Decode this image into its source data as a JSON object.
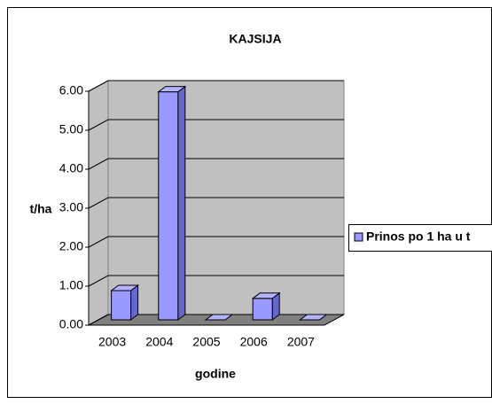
{
  "chart_data": {
    "type": "bar3d",
    "title": "KAJSIJA",
    "x_label": "godine",
    "y_label": "t/ha",
    "categories": [
      "2003",
      "2004",
      "2005",
      "2006",
      "2007"
    ],
    "series": [
      {
        "name": "Prinos po 1 ha u t",
        "color": "#9999ff",
        "values": [
          0.75,
          5.85,
          0,
          0.55,
          0
        ]
      }
    ],
    "ylim": [
      0,
      6
    ],
    "yticks": [
      {
        "value": 0,
        "label": "0.00"
      },
      {
        "value": 1,
        "label": "1.00"
      },
      {
        "value": 2,
        "label": "2.00"
      },
      {
        "value": 3,
        "label": "3.00"
      },
      {
        "value": 4,
        "label": "4.00"
      },
      {
        "value": 5,
        "label": "5.00"
      },
      {
        "value": 6,
        "label": "6.00"
      }
    ],
    "grid": true,
    "legend": "right"
  }
}
